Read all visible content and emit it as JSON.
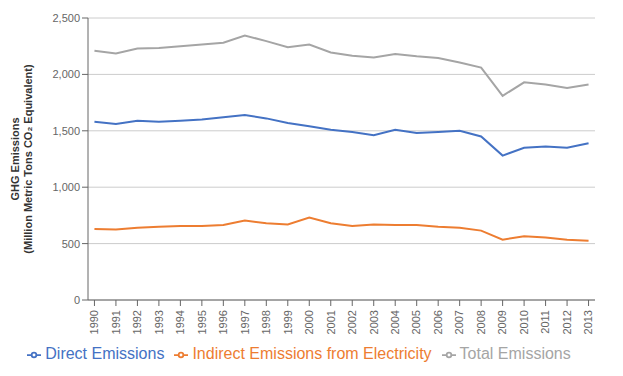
{
  "chart_data": {
    "type": "line",
    "x": [
      1990,
      1991,
      1992,
      1993,
      1994,
      1995,
      1996,
      1997,
      1998,
      1999,
      2000,
      2001,
      2002,
      2003,
      2004,
      2005,
      2006,
      2007,
      2008,
      2009,
      2010,
      2011,
      2012,
      2013
    ],
    "series": [
      {
        "name": "Direct Emissions",
        "color": "#4472C4",
        "values": [
          1580,
          1560,
          1590,
          1580,
          1590,
          1600,
          1620,
          1640,
          1610,
          1570,
          1540,
          1510,
          1490,
          1460,
          1510,
          1480,
          1490,
          1500,
          1450,
          1280,
          1350,
          1360,
          1350,
          1390
        ]
      },
      {
        "name": "Indirect Emissions from Electricity",
        "color": "#ED7D31",
        "values": [
          630,
          625,
          640,
          650,
          655,
          655,
          665,
          705,
          680,
          670,
          730,
          680,
          655,
          670,
          665,
          665,
          650,
          640,
          615,
          535,
          565,
          555,
          535,
          525
        ]
      },
      {
        "name": "Total Emissions",
        "color": "#A5A5A5",
        "values": [
          2210,
          2185,
          2230,
          2235,
          2250,
          2265,
          2280,
          2345,
          2295,
          2240,
          2265,
          2195,
          2165,
          2150,
          2180,
          2160,
          2145,
          2105,
          2060,
          1810,
          1930,
          1910,
          1880,
          1910
        ]
      }
    ],
    "ylabel": "GHG Emissions\n(Million Metric Tons CO₂ Equivalent)",
    "xlim": [
      1989.7,
      2013.3
    ],
    "xticks": [
      1990,
      1991,
      1992,
      1993,
      1994,
      1995,
      1996,
      1997,
      1998,
      1999,
      2000,
      2001,
      2002,
      2003,
      2004,
      2005,
      2006,
      2007,
      2008,
      2009,
      2010,
      2011,
      2012,
      2013
    ],
    "ylim": [
      0,
      2500
    ],
    "yticks": [
      0,
      500,
      {
        "value": 1000,
        "label": "1,000"
      },
      {
        "value": 1500,
        "label": "1,500"
      },
      {
        "value": 2000,
        "label": "2,000"
      },
      {
        "value": 2500,
        "label": "2,500"
      }
    ],
    "grid": true,
    "legend": "bottom"
  }
}
